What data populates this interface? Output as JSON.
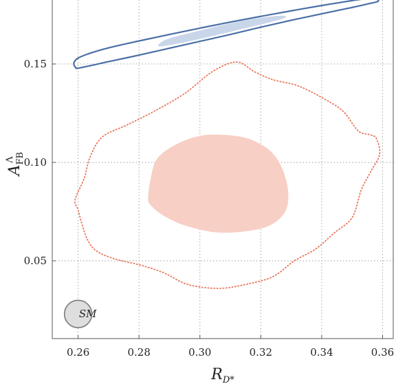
{
  "chart_data": {
    "type": "contour",
    "xlabel": "R",
    "xlabel_sub": "D*",
    "ylabel": "A",
    "ylabel_sub": "FB",
    "ylabel_sup": "Λ",
    "xlim": [
      0.2515,
      0.3635
    ],
    "ylim": [
      0.0105,
      0.1825
    ],
    "grid": true,
    "x_ticks": [
      {
        "value": 0.26,
        "label": "0.26"
      },
      {
        "value": 0.28,
        "label": "0.28"
      },
      {
        "value": 0.3,
        "label": "0.30"
      },
      {
        "value": 0.32,
        "label": "0.32"
      },
      {
        "value": 0.34,
        "label": "0.34"
      },
      {
        "value": 0.36,
        "label": "0.36"
      }
    ],
    "y_ticks": [
      {
        "value": 0.05,
        "label": "0.05"
      },
      {
        "value": 0.1,
        "label": "0.10"
      },
      {
        "value": 0.15,
        "label": "0.15"
      }
    ],
    "colors": {
      "blue_outline": "#4a6fa5",
      "blue_fill": "#c9d6ea",
      "red_fill": "#f7cfc5",
      "red_dotted": "#e8765a",
      "sm_fill": "#dedede",
      "sm_stroke": "#7a7a7a"
    },
    "regions": [
      {
        "style": "blue_outline",
        "points": [
          [
            0.2586,
            0.1505
          ],
          [
            0.2592,
            0.1482
          ],
          [
            0.2605,
            0.148
          ],
          [
            0.27,
            0.1512
          ],
          [
            0.28,
            0.1545
          ],
          [
            0.29,
            0.158
          ],
          [
            0.3,
            0.1615
          ],
          [
            0.31,
            0.165
          ],
          [
            0.32,
            0.1687
          ],
          [
            0.33,
            0.1722
          ],
          [
            0.34,
            0.1755
          ],
          [
            0.35,
            0.1787
          ],
          [
            0.356,
            0.1808
          ],
          [
            0.3585,
            0.1818
          ],
          [
            0.358,
            0.183
          ],
          [
            0.355,
            0.1832
          ],
          [
            0.35,
            0.1822
          ],
          [
            0.34,
            0.1797
          ],
          [
            0.33,
            0.177
          ],
          [
            0.32,
            0.1742
          ],
          [
            0.31,
            0.1713
          ],
          [
            0.3,
            0.1682
          ],
          [
            0.29,
            0.165
          ],
          [
            0.28,
            0.1617
          ],
          [
            0.27,
            0.1582
          ],
          [
            0.264,
            0.1555
          ],
          [
            0.26,
            0.153
          ]
        ]
      },
      {
        "style": "blue_fill",
        "points": [
          [
            0.2865,
            0.16
          ],
          [
            0.2875,
            0.159
          ],
          [
            0.295,
            0.161
          ],
          [
            0.305,
            0.1645
          ],
          [
            0.315,
            0.1682
          ],
          [
            0.323,
            0.1712
          ],
          [
            0.328,
            0.1735
          ],
          [
            0.327,
            0.1745
          ],
          [
            0.32,
            0.1735
          ],
          [
            0.31,
            0.1707
          ],
          [
            0.3,
            0.167
          ],
          [
            0.29,
            0.163
          ]
        ]
      },
      {
        "style": "red_fill",
        "points": [
          [
            0.283,
            0.082
          ],
          [
            0.284,
            0.078
          ],
          [
            0.288,
            0.073
          ],
          [
            0.295,
            0.068
          ],
          [
            0.305,
            0.0645
          ],
          [
            0.315,
            0.065
          ],
          [
            0.323,
            0.068
          ],
          [
            0.328,
            0.075
          ],
          [
            0.329,
            0.085
          ],
          [
            0.327,
            0.097
          ],
          [
            0.323,
            0.106
          ],
          [
            0.316,
            0.112
          ],
          [
            0.308,
            0.114
          ],
          [
            0.3,
            0.1135
          ],
          [
            0.292,
            0.109
          ],
          [
            0.286,
            0.102
          ],
          [
            0.284,
            0.093
          ]
        ]
      },
      {
        "style": "red_dotted",
        "points": [
          [
            0.259,
            0.081
          ],
          [
            0.262,
            0.092
          ],
          [
            0.264,
            0.103
          ],
          [
            0.268,
            0.113
          ],
          [
            0.276,
            0.119
          ],
          [
            0.285,
            0.126
          ],
          [
            0.295,
            0.135
          ],
          [
            0.304,
            0.146
          ],
          [
            0.312,
            0.151
          ],
          [
            0.318,
            0.146
          ],
          [
            0.324,
            0.142
          ],
          [
            0.332,
            0.139
          ],
          [
            0.34,
            0.133
          ],
          [
            0.347,
            0.126
          ],
          [
            0.352,
            0.116
          ],
          [
            0.356,
            0.114
          ],
          [
            0.358,
            0.112
          ],
          [
            0.359,
            0.104
          ],
          [
            0.356,
            0.095
          ],
          [
            0.353,
            0.086
          ],
          [
            0.35,
            0.072
          ],
          [
            0.344,
            0.064
          ],
          [
            0.338,
            0.056
          ],
          [
            0.331,
            0.05
          ],
          [
            0.324,
            0.042
          ],
          [
            0.315,
            0.038
          ],
          [
            0.306,
            0.036
          ],
          [
            0.296,
            0.038
          ],
          [
            0.288,
            0.044
          ],
          [
            0.28,
            0.048
          ],
          [
            0.272,
            0.051
          ],
          [
            0.266,
            0.055
          ],
          [
            0.263,
            0.061
          ],
          [
            0.261,
            0.07
          ],
          [
            0.26,
            0.076
          ]
        ]
      }
    ],
    "sm_marker": {
      "x": 0.26,
      "y": 0.023,
      "radius_x": 0.0045,
      "label": "SM"
    }
  }
}
